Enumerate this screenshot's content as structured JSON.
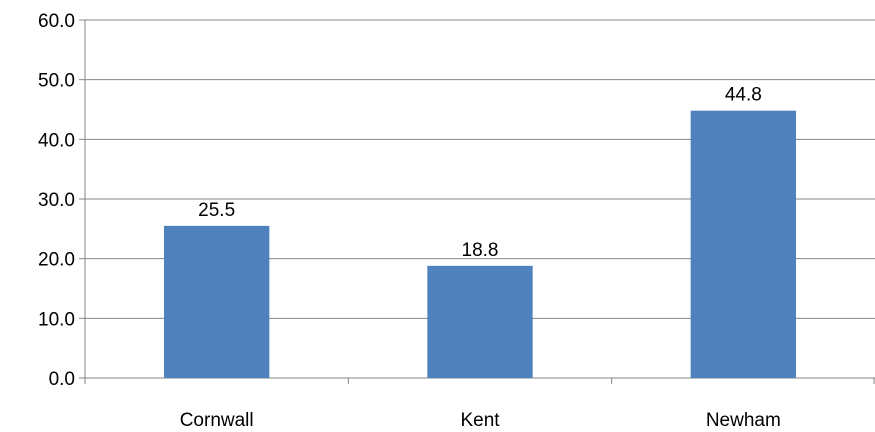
{
  "chart_data": {
    "type": "bar",
    "categories": [
      "Cornwall",
      "Kent",
      "Newham"
    ],
    "values": [
      25.5,
      18.8,
      44.8
    ],
    "value_labels": [
      "25.5",
      "18.8",
      "44.8"
    ],
    "title": "",
    "xlabel": "",
    "ylabel": "",
    "ylim": [
      0,
      60
    ],
    "yticks": [
      "0.0",
      "10.0",
      "20.0",
      "30.0",
      "40.0",
      "50.0",
      "60.0"
    ],
    "grid": true,
    "legend": "none",
    "bar_color": "#4f81bd",
    "grid_color": "#868686"
  }
}
